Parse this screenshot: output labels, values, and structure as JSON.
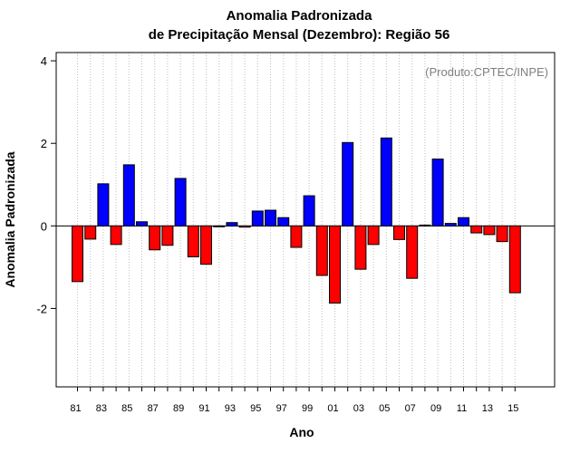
{
  "chart_data": {
    "type": "bar",
    "title_line1": "Anomalia Padronizada",
    "title_line2": "de Precipitação Mensal (Dezembro): Região 56",
    "xlabel": "Ano",
    "ylabel": "Anomalia Padronizada",
    "credit": "(Produto:CPTEC/INPE)",
    "ylim": [
      -3.9,
      4.2
    ],
    "yticks": [
      -2,
      0,
      2,
      4
    ],
    "ytick_labels": [
      "-2",
      "0",
      "2",
      "4"
    ],
    "years": [
      1981,
      1982,
      1983,
      1984,
      1985,
      1986,
      1987,
      1988,
      1989,
      1990,
      1991,
      1992,
      1993,
      1994,
      1995,
      1996,
      1997,
      1998,
      1999,
      2000,
      2001,
      2002,
      2003,
      2004,
      2005,
      2006,
      2007,
      2008,
      2009,
      2010,
      2011,
      2012,
      2013,
      2014,
      2015
    ],
    "values": [
      -1.35,
      -0.32,
      1.02,
      -0.45,
      1.48,
      0.1,
      -0.58,
      -0.47,
      1.15,
      -0.75,
      -0.93,
      0.0,
      0.08,
      -0.03,
      0.36,
      0.38,
      0.2,
      -0.52,
      0.73,
      -1.2,
      -1.87,
      2.02,
      -1.05,
      -0.45,
      2.13,
      -0.33,
      -1.27,
      0.02,
      1.62,
      0.06,
      0.2,
      -0.17,
      -0.21,
      -0.38,
      -1.62
    ],
    "x_tick_labels": [
      "81",
      "83",
      "85",
      "87",
      "89",
      "91",
      "93",
      "95",
      "97",
      "99",
      "01",
      "03",
      "05",
      "07",
      "09",
      "11",
      "13",
      "15"
    ],
    "colors": {
      "positive": "#0000ff",
      "negative": "#ff0000",
      "outline": "#000000",
      "grid": "#bfbfbf"
    },
    "grid": "vertical dotted lines at each year",
    "gridlines": true
  }
}
